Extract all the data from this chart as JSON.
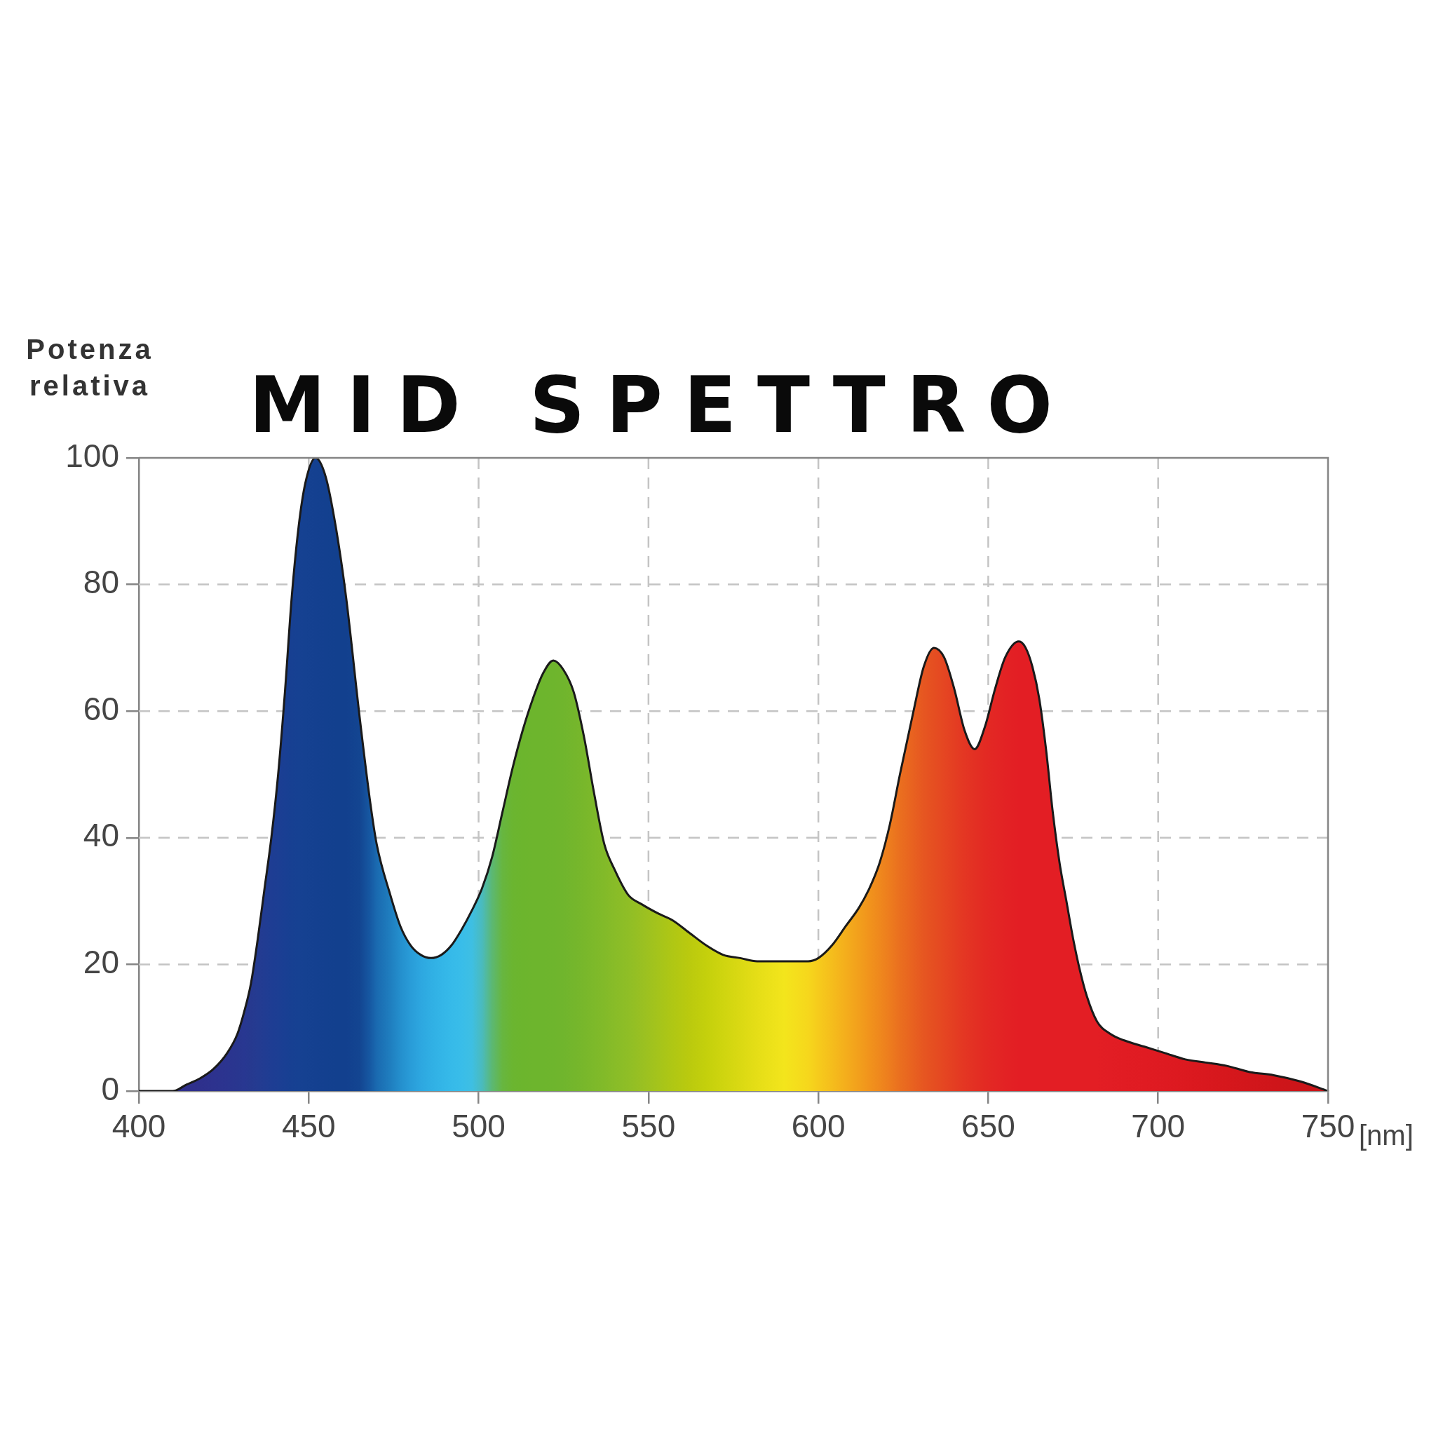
{
  "chart_data": {
    "type": "area",
    "title": "MID SPETTRO",
    "ylabel": "Potenza relativa",
    "xlabel": "[nm]",
    "x": [
      400,
      410,
      414,
      418,
      422,
      426,
      429,
      431,
      433,
      435,
      437,
      439,
      441,
      443,
      445,
      447,
      449,
      452,
      455,
      458,
      461,
      465,
      468,
      470,
      474,
      477,
      480,
      483,
      486,
      489,
      492,
      495,
      498,
      501,
      504,
      507,
      510,
      513,
      516,
      519,
      522,
      525,
      528,
      531,
      534,
      537,
      540,
      544,
      548,
      553,
      557,
      562,
      567,
      572,
      577,
      582,
      590,
      597,
      600,
      604,
      608,
      612,
      615,
      618,
      621,
      624,
      628,
      631,
      634,
      637,
      640,
      643,
      646,
      649,
      652,
      655,
      659,
      661,
      663,
      665,
      667,
      669,
      671,
      673,
      675,
      677,
      679,
      682,
      686,
      690,
      696,
      702,
      708,
      714,
      720,
      727,
      734,
      742,
      750
    ],
    "series": [
      {
        "color": "#1a1a1a",
        "values": [
          0,
          0,
          1,
          2,
          3.5,
          6,
          9,
          12.5,
          17,
          24,
          32,
          40,
          50,
          63,
          78,
          89,
          96,
          100,
          97,
          89,
          78,
          59,
          46,
          39,
          31,
          26,
          23,
          21.5,
          21,
          21.5,
          23,
          25.5,
          28.5,
          32,
          37,
          44,
          51,
          57,
          62,
          66,
          68,
          66.5,
          63,
          56,
          47,
          39,
          35,
          31,
          29.5,
          28,
          27,
          25,
          23,
          21.5,
          21,
          20.5,
          20.5,
          20.5,
          21,
          23,
          26,
          29,
          32,
          36,
          42,
          50,
          60,
          67,
          70,
          68.5,
          63.5,
          57,
          54,
          57.5,
          63.5,
          68.5,
          71,
          70,
          67,
          62,
          54,
          44,
          36,
          30,
          24,
          19,
          15,
          11,
          9,
          8,
          7,
          6,
          5,
          4.5,
          4,
          3,
          2.5,
          1.5,
          0
        ],
        "colors": [
          "#2e2f8a",
          "#2e2f8a",
          "#2f2f8b",
          "#2e308c",
          "#2d328e",
          "#2b348f",
          "#29368f",
          "#283791",
          "#26398f",
          "#243b91",
          "#213c92",
          "#1e3d93",
          "#1c3e93",
          "#193f93",
          "#174092",
          "#164192",
          "#154191",
          "#144090",
          "#13408f",
          "#12408e",
          "#12408e",
          "#134591",
          "#1658a2",
          "#1a6ab0",
          "#1f7ebf",
          "#248fcd",
          "#299cd8",
          "#2da7e0",
          "#30afe4",
          "#33b5e7",
          "#36bae9",
          "#39bde9",
          "#3ebfe3",
          "#4abbbe",
          "#5cb872",
          "#67b640",
          "#6bb530",
          "#6cb52d",
          "#6db52d",
          "#6db52d",
          "#6eb52d",
          "#70b52d",
          "#74b62c",
          "#78b72b",
          "#7db92a",
          "#82ba29",
          "#88bc28",
          "#8fbe26",
          "#99c022",
          "#a5c41b",
          "#afc714",
          "#baca0e",
          "#c4d00c",
          "#cfd50f",
          "#dad913",
          "#e5de17",
          "#f3e51c",
          "#f6d71c",
          "#f6cb1c",
          "#f5bd1c",
          "#f4ae1c",
          "#f29f1c",
          "#f1931c",
          "#ef881d",
          "#ed7c1e",
          "#ea6f1f",
          "#e86120",
          "#e65621",
          "#e54e21",
          "#e54622",
          "#e43e22",
          "#e43623",
          "#e33023",
          "#e32a23",
          "#e32624",
          "#e32224",
          "#e31e24",
          "#e31e24",
          "#e31e24",
          "#e31e24",
          "#e31e24",
          "#e31e24",
          "#e31e24",
          "#e31e24",
          "#e31e24",
          "#e31e24",
          "#e31e24",
          "#e31e24",
          "#e21d24",
          "#e11c23",
          "#e01b22",
          "#de1a21",
          "#dc191f",
          "#d9181e",
          "#d6171c",
          "#d2161b",
          "#cf151a",
          "#cb1519",
          "#c71518"
        ]
      }
    ],
    "xlim": [
      400,
      750
    ],
    "xticks": [
      400,
      450,
      500,
      550,
      600,
      650,
      700,
      750
    ],
    "ylim": [
      0,
      100
    ],
    "yticks": [
      0,
      20,
      40,
      60,
      80,
      100
    ],
    "grid": true,
    "line_style": "solid"
  }
}
